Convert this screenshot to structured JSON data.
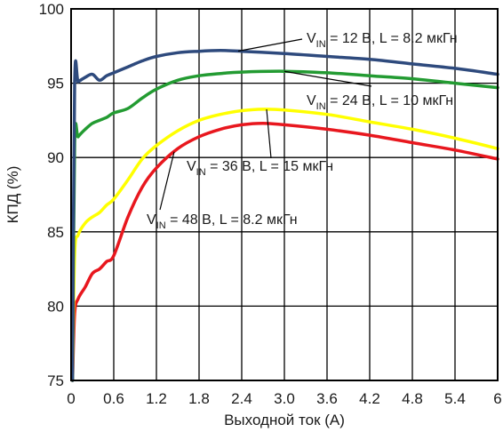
{
  "chart_data": {
    "type": "line",
    "title": "",
    "xlabel": "Выходной ток (А)",
    "ylabel": "КПД (%)",
    "xlim": [
      0,
      6
    ],
    "ylim": [
      75,
      100
    ],
    "x_ticks": [
      "0",
      "0.6",
      "1.2",
      "1.8",
      "2.4",
      "3.0",
      "3.6",
      "4.2",
      "4.8",
      "5.4",
      "6"
    ],
    "y_ticks": [
      "75",
      "80",
      "85",
      "90",
      "95",
      "100"
    ],
    "grid": true,
    "series": [
      {
        "name": "VIN = 12 В, L = 8.2 мкГн",
        "label_main": "V",
        "label_sub": "IN",
        "label_rest": " = 12 В, L = 8.2 мкГн",
        "color": "#2e4a7d",
        "x": [
          0.02,
          0.05,
          0.1,
          0.2,
          0.3,
          0.4,
          0.5,
          0.6,
          0.8,
          1.0,
          1.2,
          1.5,
          1.8,
          2.1,
          2.4,
          3.0,
          3.6,
          4.2,
          4.8,
          5.4,
          6.0
        ],
        "y": [
          75.0,
          95.0,
          95.1,
          95.4,
          95.6,
          95.2,
          95.5,
          95.7,
          96.1,
          96.5,
          96.8,
          97.05,
          97.15,
          97.2,
          97.15,
          97.0,
          96.8,
          96.6,
          96.3,
          96.0,
          95.6
        ]
      },
      {
        "name": "VIN = 24 В, L = 10 мкГн",
        "label_main": "V",
        "label_sub": "IN",
        "label_rest": " = 24 В, L = 10 мкГн",
        "color": "#239b32",
        "x": [
          0.02,
          0.05,
          0.1,
          0.2,
          0.3,
          0.4,
          0.5,
          0.6,
          0.8,
          1.0,
          1.2,
          1.5,
          1.8,
          2.1,
          2.4,
          3.0,
          3.6,
          4.2,
          4.8,
          5.4,
          6.0
        ],
        "y": [
          75.0,
          91.0,
          91.4,
          91.9,
          92.3,
          92.5,
          92.7,
          93.0,
          93.3,
          94.0,
          94.6,
          95.2,
          95.5,
          95.65,
          95.75,
          95.8,
          95.7,
          95.5,
          95.3,
          95.0,
          94.7
        ]
      },
      {
        "name": "VIN = 36 В, L = 15 мкГн",
        "label_main": "V",
        "label_sub": "IN",
        "label_rest": " = 36 В, L = 15 мкГн",
        "color": "#ffff00",
        "x": [
          0.02,
          0.05,
          0.1,
          0.2,
          0.3,
          0.4,
          0.5,
          0.6,
          0.8,
          1.0,
          1.2,
          1.5,
          1.8,
          2.1,
          2.4,
          2.7,
          3.0,
          3.6,
          4.2,
          4.8,
          5.4,
          6.0
        ],
        "y": [
          75.0,
          83.5,
          84.8,
          85.6,
          86.0,
          86.3,
          86.8,
          87.2,
          88.5,
          89.9,
          90.8,
          91.8,
          92.5,
          92.9,
          93.15,
          93.25,
          93.2,
          92.9,
          92.4,
          91.9,
          91.3,
          90.6
        ]
      },
      {
        "name": "VIN = 48 В, L = 8.2 мкГн",
        "label_main": "V",
        "label_sub": "IN",
        "label_rest": " = 48 В, L = 8.2 мкГн",
        "color": "#e8171e",
        "x": [
          0.02,
          0.05,
          0.1,
          0.2,
          0.3,
          0.4,
          0.5,
          0.6,
          0.8,
          1.0,
          1.2,
          1.5,
          1.8,
          2.1,
          2.4,
          2.7,
          3.0,
          3.6,
          4.2,
          4.8,
          5.4,
          6.0
        ],
        "y": [
          75.0,
          79.5,
          80.5,
          81.3,
          82.2,
          82.5,
          83.0,
          83.4,
          86.0,
          88.0,
          89.3,
          90.6,
          91.4,
          91.9,
          92.2,
          92.3,
          92.2,
          91.9,
          91.5,
          91.0,
          90.5,
          89.9
        ]
      }
    ]
  }
}
